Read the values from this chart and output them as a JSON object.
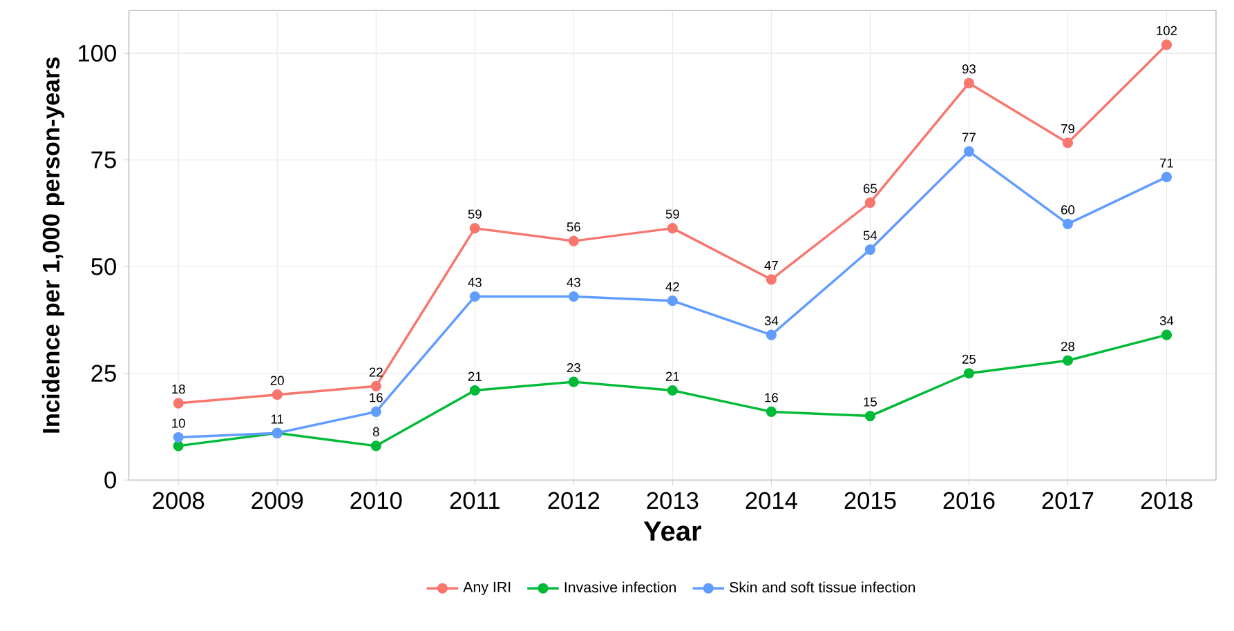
{
  "chart_data": {
    "type": "line",
    "xlabel": "Year",
    "ylabel": "Incidence per 1,000 person-years",
    "x": [
      2008,
      2009,
      2010,
      2011,
      2012,
      2013,
      2014,
      2015,
      2016,
      2017,
      2018
    ],
    "series": [
      {
        "name": "Any IRI",
        "color": "#f8766d",
        "values": [
          18,
          20,
          22,
          59,
          56,
          59,
          47,
          65,
          93,
          79,
          102
        ],
        "value_labels": [
          "18",
          "20",
          "22",
          "59",
          "56",
          "59",
          "47",
          "65",
          "93",
          "79",
          "102"
        ]
      },
      {
        "name": "Invasive infection",
        "color": "#00ba38",
        "values": [
          8,
          11,
          8,
          21,
          23,
          21,
          16,
          15,
          25,
          28,
          34
        ],
        "value_labels": [
          null,
          "11",
          "8",
          "21",
          "23",
          "21",
          "16",
          "15",
          "25",
          "28",
          "34"
        ]
      },
      {
        "name": "Skin and soft tissue infection",
        "color": "#619cff",
        "values": [
          10,
          11,
          16,
          43,
          43,
          42,
          34,
          54,
          77,
          60,
          71
        ],
        "value_labels": [
          "10",
          null,
          "16",
          "43",
          "43",
          "42",
          "34",
          "54",
          "77",
          "60",
          "71"
        ]
      }
    ],
    "xlim": [
      2007.5,
      2018.5
    ],
    "ylim": [
      0,
      110
    ],
    "xticks": [
      2008,
      2009,
      2010,
      2011,
      2012,
      2013,
      2014,
      2015,
      2016,
      2017,
      2018
    ],
    "yticks": [
      0,
      25,
      50,
      75,
      100
    ],
    "grid": true,
    "legend": "bottom",
    "marker": "circle",
    "line_style": "solid"
  }
}
